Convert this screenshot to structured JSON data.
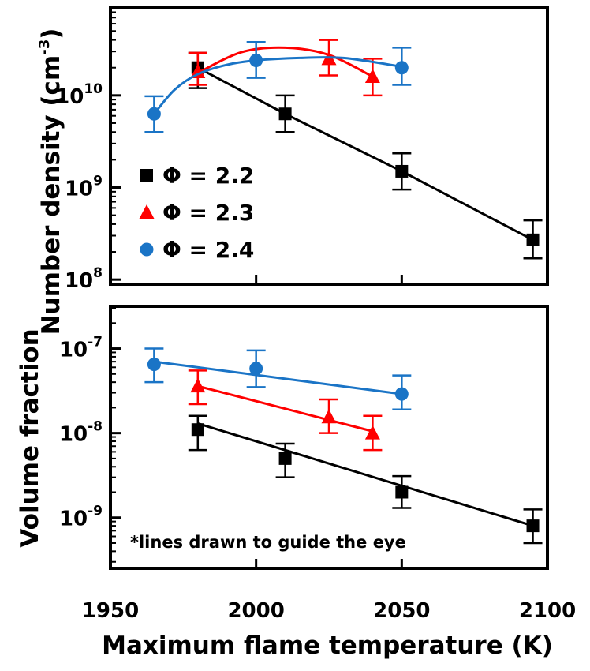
{
  "chart_data": {
    "type": "scatter",
    "xlabel": "Maximum flame temperature (K)",
    "xlim": [
      1950,
      2100
    ],
    "x_ticks": [
      "1950",
      "2000",
      "2050",
      "2100"
    ],
    "x_tick_values": [
      1950,
      2000,
      2050,
      2100
    ],
    "colors": {
      "phi_2_2": "#000000",
      "phi_2_3": "#ff0000",
      "phi_2_4": "#1a74c6"
    },
    "legend": {
      "placement": "inside-left-top-panel",
      "entries": [
        "Φ = 2.2",
        "Φ = 2.3",
        "Φ = 2.4"
      ]
    },
    "annotation": "*lines drawn to guide the eye",
    "panels": [
      {
        "id": "top",
        "ylabel": "Number density (cm",
        "ylabel_sup": "-3",
        "ylabel_close": ")",
        "yscale": "log",
        "ylim_exp": [
          7.95,
          10.95
        ],
        "y_ticks": [
          {
            "value_exp": 8,
            "base": "10",
            "sup": "8"
          },
          {
            "value_exp": 9,
            "base": "10",
            "sup": "9"
          },
          {
            "value_exp": 10,
            "base": "10",
            "sup": "10"
          }
        ],
        "series": [
          {
            "name": "Φ = 2.2",
            "color_key": "phi_2_2",
            "marker": "square",
            "x": [
              1980,
              2010,
              2050,
              2095
            ],
            "y": [
              20000000000.0,
              6300000000.0,
              1500000000.0,
              270000000.0
            ],
            "y_err_low": [
              12000000000.0,
              4000000000.0,
              950000000.0,
              170000000.0
            ],
            "y_err_high": [
              29000000000.0,
              10000000000.0,
              2350000000.0,
              440000000.0
            ],
            "line": {
              "kind": "segments",
              "x": [
                1980,
                2010,
                2050,
                2095
              ],
              "y": [
                20000000000.0,
                6300000000.0,
                1500000000.0,
                270000000.0
              ]
            }
          },
          {
            "name": "Φ = 2.3",
            "color_key": "phi_2_3",
            "marker": "triangle",
            "x": [
              1980,
              2025,
              2040
            ],
            "y": [
              18000000000.0,
              25000000000.0,
              16000000000.0
            ],
            "y_err_low": [
              13000000000.0,
              16500000000.0,
              10000000000.0
            ],
            "y_err_high": [
              29000000000.0,
              40000000000.0,
              25000000000.0
            ],
            "line": {
              "kind": "smooth",
              "x": [
                1980,
                1995,
                2010,
                2025,
                2040
              ],
              "y": [
                17500000000.0,
                29500000000.0,
                33000000000.0,
                27500000000.0,
                16000000000.0
              ]
            }
          },
          {
            "name": "Φ = 2.4",
            "color_key": "phi_2_4",
            "marker": "circle",
            "x": [
              1965,
              2000,
              2050
            ],
            "y": [
              6300000000.0,
              24000000000.0,
              20000000000.0
            ],
            "y_err_low": [
              4000000000.0,
              15500000000.0,
              13000000000.0
            ],
            "y_err_high": [
              9800000000.0,
              38000000000.0,
              33000000000.0
            ],
            "line": {
              "kind": "smooth",
              "x": [
                1965,
                1972,
                1980,
                1990,
                2000,
                2015,
                2030,
                2050
              ],
              "y": [
                6300000000.0,
                11500000000.0,
                17000000000.0,
                21500000000.0,
                24000000000.0,
                25500000000.0,
                25500000000.0,
                20500000000.0
              ]
            }
          }
        ]
      },
      {
        "id": "bottom",
        "ylabel": "Volume fraction",
        "yscale": "log",
        "ylim_exp": [
          -9.6,
          -6.5
        ],
        "y_ticks": [
          {
            "value_exp": -9,
            "base": "10",
            "sup": "-9"
          },
          {
            "value_exp": -8,
            "base": "10",
            "sup": "-8"
          },
          {
            "value_exp": -7,
            "base": "10",
            "sup": "-7"
          }
        ],
        "series": [
          {
            "name": "Φ = 2.2",
            "color_key": "phi_2_2",
            "marker": "square",
            "x": [
              1980,
              2010,
              2050,
              2095
            ],
            "y": [
              1.1e-08,
              5e-09,
              2e-09,
              8e-10
            ],
            "y_err_low": [
              6.3e-09,
              3e-09,
              1.3e-09,
              5e-10
            ],
            "y_err_high": [
              1.6e-08,
              7.5e-09,
              3.1e-09,
              1.25e-09
            ],
            "line": {
              "kind": "straight",
              "x": [
                1980,
                2095
              ],
              "y": [
                1.3e-08,
                8e-10
              ]
            }
          },
          {
            "name": "Φ = 2.3",
            "color_key": "phi_2_3",
            "marker": "triangle",
            "x": [
              1980,
              2025,
              2040
            ],
            "y": [
              3.6e-08,
              1.55e-08,
              1e-08
            ],
            "y_err_low": [
              2.2e-08,
              1e-08,
              6.3e-09
            ],
            "y_err_high": [
              5.5e-08,
              2.5e-08,
              1.6e-08
            ],
            "line": {
              "kind": "straight",
              "x": [
                1980,
                2040
              ],
              "y": [
                3.6e-08,
                1.05e-08
              ]
            }
          },
          {
            "name": "Φ = 2.4",
            "color_key": "phi_2_4",
            "marker": "circle",
            "x": [
              1965,
              2000,
              2050
            ],
            "y": [
              6.5e-08,
              5.8e-08,
              2.9e-08
            ],
            "y_err_low": [
              4e-08,
              3.5e-08,
              1.9e-08
            ],
            "y_err_high": [
              1e-07,
              9.5e-08,
              4.8e-08
            ],
            "line": {
              "kind": "straight",
              "x": [
                1965,
                2050
              ],
              "y": [
                7e-08,
                2.9e-08
              ]
            }
          }
        ]
      }
    ]
  }
}
